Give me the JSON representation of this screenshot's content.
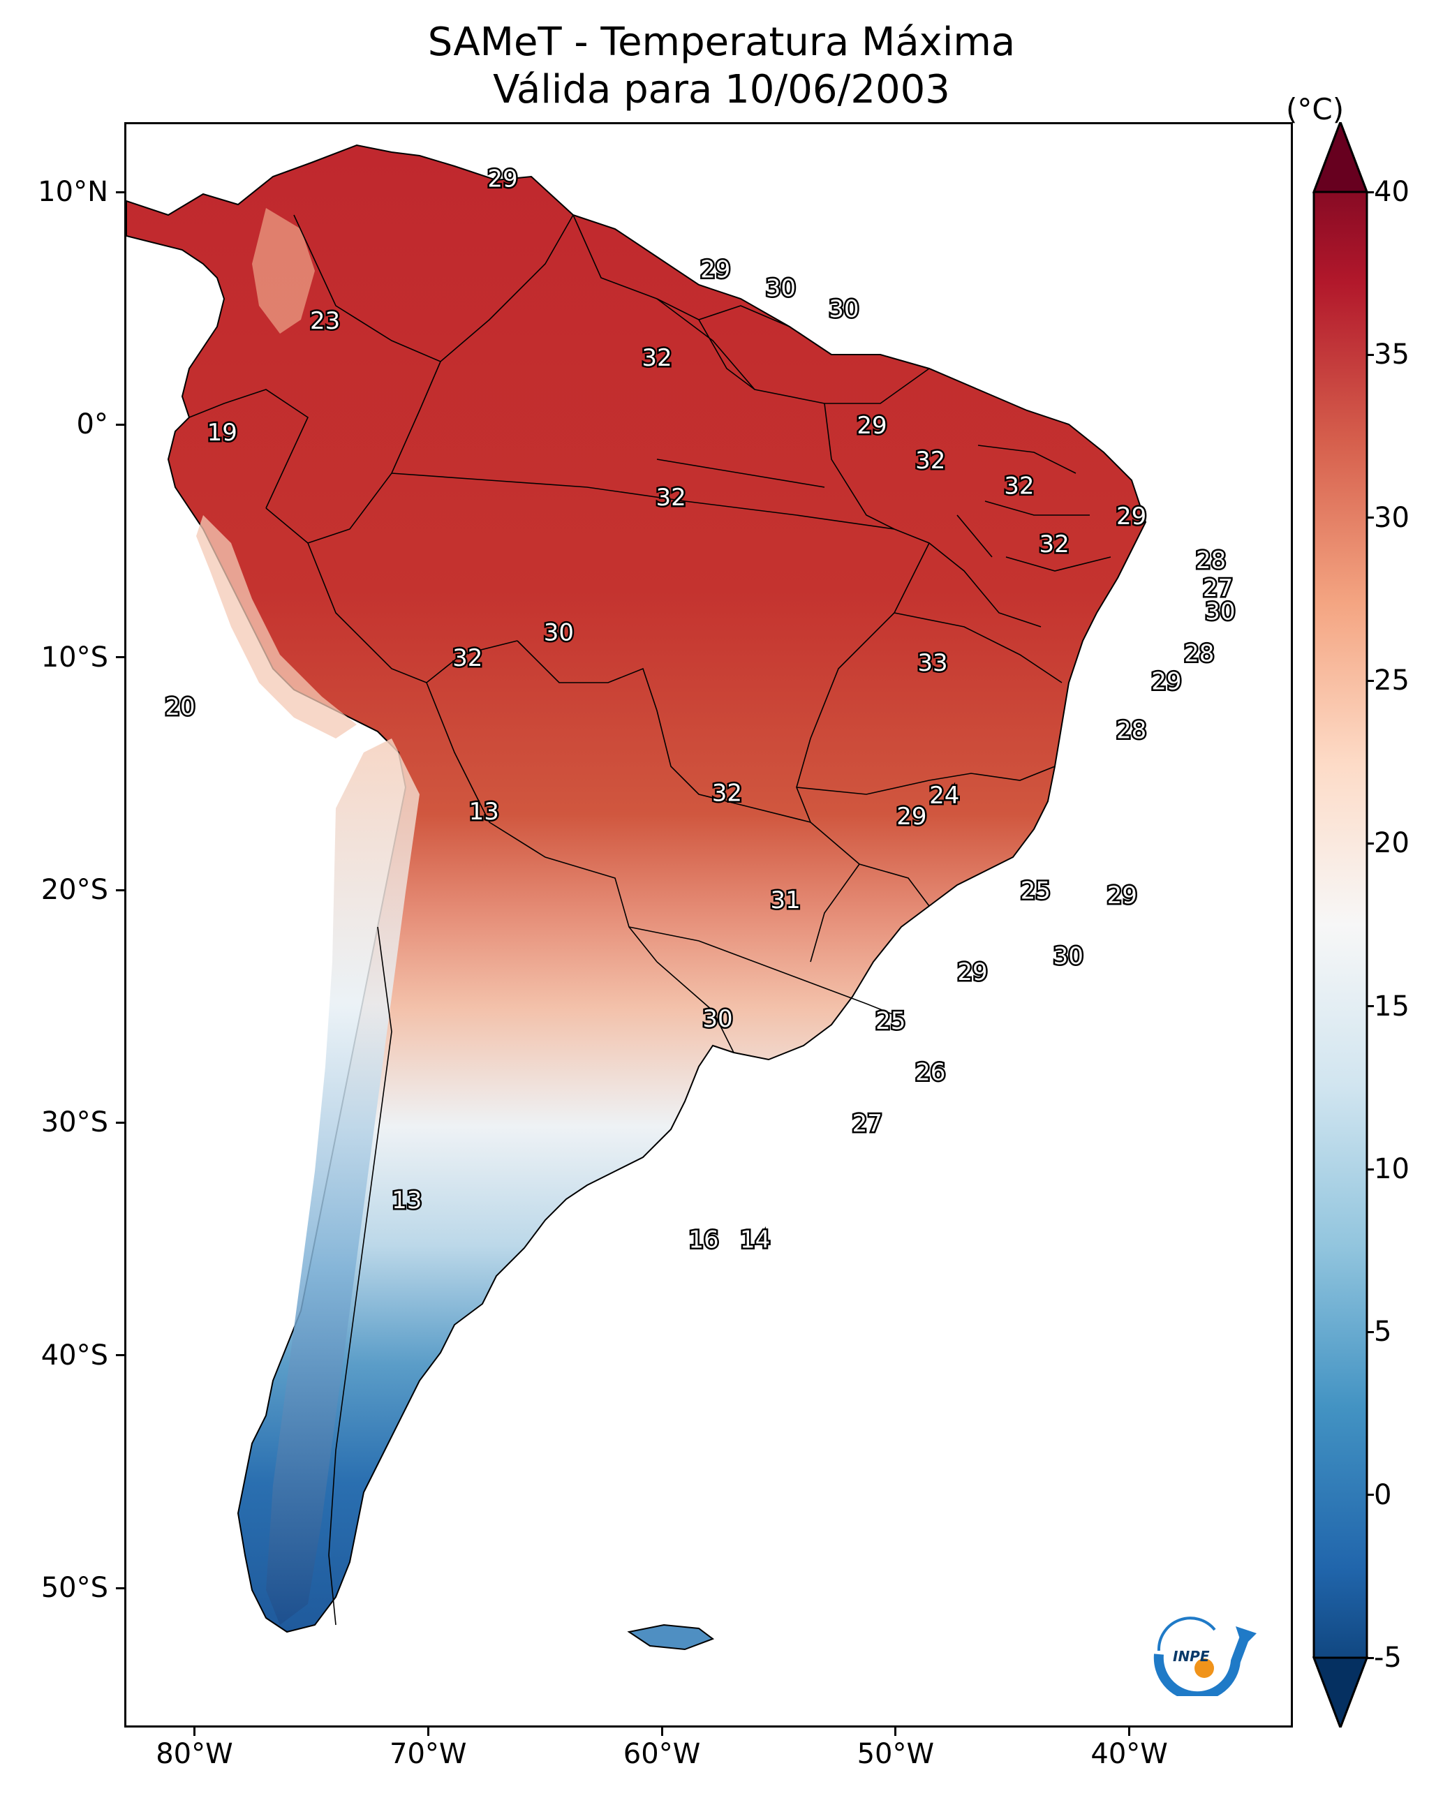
{
  "title": {
    "line1": "SAMeT - Temperatura Máxima",
    "line2": "Válida para 10/06/2003"
  },
  "axes": {
    "lat_labels": [
      "10°N",
      "0°",
      "10°S",
      "20°S",
      "30°S",
      "40°S",
      "50°S"
    ],
    "lat_values": [
      10,
      0,
      -10,
      -20,
      -30,
      -40,
      -50
    ],
    "lon_labels": [
      "80°W",
      "70°W",
      "60°W",
      "50°W",
      "40°W"
    ],
    "lon_values": [
      -80,
      -70,
      -60,
      -50,
      -40
    ],
    "lat_range": [
      -56,
      13
    ],
    "lon_range": [
      -83,
      -33
    ]
  },
  "colorbar": {
    "units": "(°C)",
    "tick_labels": [
      "40",
      "35",
      "30",
      "25",
      "20",
      "15",
      "10",
      "5",
      "0",
      "-5"
    ],
    "tick_values": [
      40,
      35,
      30,
      25,
      20,
      15,
      10,
      5,
      0,
      -5
    ],
    "range": [
      -5,
      40
    ],
    "colors": [
      "#053061",
      "#2166ac",
      "#4393c3",
      "#92c5de",
      "#d1e5f0",
      "#f7f7f7",
      "#fddbc7",
      "#f4a582",
      "#d6604d",
      "#b2182b",
      "#67001f"
    ]
  },
  "contour_labels": [
    {
      "text": "29",
      "lon": -66.9,
      "lat": 10.6
    },
    {
      "text": "23",
      "lon": -74.5,
      "lat": 4.5
    },
    {
      "text": "19",
      "lon": -78.9,
      "lat": -0.3
    },
    {
      "text": "29",
      "lon": -57.8,
      "lat": 6.7
    },
    {
      "text": "30",
      "lon": -55.0,
      "lat": 5.9
    },
    {
      "text": "30",
      "lon": -52.3,
      "lat": 5.0
    },
    {
      "text": "32",
      "lon": -60.3,
      "lat": 2.9
    },
    {
      "text": "29",
      "lon": -51.1,
      "lat": 0.0
    },
    {
      "text": "32",
      "lon": -48.6,
      "lat": -1.5
    },
    {
      "text": "32",
      "lon": -44.8,
      "lat": -2.6
    },
    {
      "text": "29",
      "lon": -40.0,
      "lat": -3.9
    },
    {
      "text": "32",
      "lon": -59.7,
      "lat": -3.1
    },
    {
      "text": "32",
      "lon": -43.3,
      "lat": -5.1
    },
    {
      "text": "28",
      "lon": -36.6,
      "lat": -5.8
    },
    {
      "text": "27",
      "lon": -36.3,
      "lat": -7.0
    },
    {
      "text": "30",
      "lon": -36.2,
      "lat": -8.0
    },
    {
      "text": "28",
      "lon": -37.1,
      "lat": -9.8
    },
    {
      "text": "29",
      "lon": -38.5,
      "lat": -11.0
    },
    {
      "text": "30",
      "lon": -64.5,
      "lat": -8.9
    },
    {
      "text": "32",
      "lon": -68.4,
      "lat": -10.0
    },
    {
      "text": "33",
      "lon": -48.5,
      "lat": -10.2
    },
    {
      "text": "20",
      "lon": -80.7,
      "lat": -12.1
    },
    {
      "text": "28",
      "lon": -40.0,
      "lat": -13.1
    },
    {
      "text": "32",
      "lon": -57.3,
      "lat": -15.8
    },
    {
      "text": "24",
      "lon": -48.0,
      "lat": -15.9
    },
    {
      "text": "29",
      "lon": -49.4,
      "lat": -16.8
    },
    {
      "text": "13",
      "lon": -67.7,
      "lat": -16.6
    },
    {
      "text": "25",
      "lon": -44.1,
      "lat": -20.0
    },
    {
      "text": "29",
      "lon": -40.4,
      "lat": -20.2
    },
    {
      "text": "31",
      "lon": -54.8,
      "lat": -20.4
    },
    {
      "text": "30",
      "lon": -42.7,
      "lat": -22.8
    },
    {
      "text": "29",
      "lon": -46.8,
      "lat": -23.5
    },
    {
      "text": "30",
      "lon": -57.7,
      "lat": -25.5
    },
    {
      "text": "25",
      "lon": -50.3,
      "lat": -25.6
    },
    {
      "text": "26",
      "lon": -48.6,
      "lat": -27.8
    },
    {
      "text": "27",
      "lon": -51.3,
      "lat": -30.0
    },
    {
      "text": "13",
      "lon": -71.0,
      "lat": -33.3
    },
    {
      "text": "16",
      "lon": -58.3,
      "lat": -35.0
    },
    {
      "text": "14",
      "lon": -56.1,
      "lat": -35.0
    }
  ],
  "logo": {
    "text": "INPE"
  }
}
